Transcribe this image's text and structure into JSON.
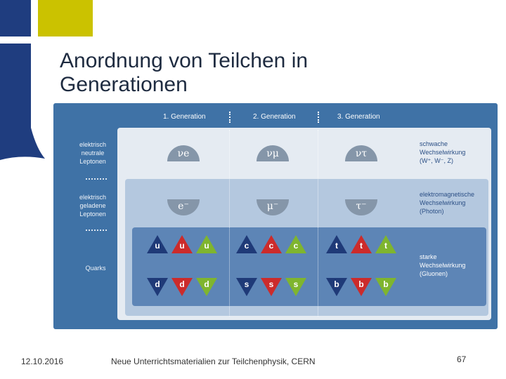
{
  "slide": {
    "title": "Anordnung von Teilchen in Generationen"
  },
  "diagram": {
    "generations": [
      "1. Generation",
      "2. Generation",
      "3. Generation"
    ],
    "row_labels": {
      "neutral_leptons": "elektrisch neutrale Leptonen",
      "charged_leptons": "elektrisch geladene Leptonen",
      "quarks": "Quarks"
    },
    "interactions": {
      "weak": "schwache Wechselwirkung (W⁺, W⁻, Z)",
      "electromagnetic": "elektromagnetische Wechselwirkung (Photon)",
      "strong": "starke Wechselwirkung (Gluonen)"
    },
    "neutrinos": [
      "νe",
      "νμ",
      "ντ"
    ],
    "charged_leptons": [
      "e⁻",
      "μ⁻",
      "τ⁻"
    ],
    "up_quarks": [
      "u",
      "u",
      "u",
      "c",
      "c",
      "c",
      "t",
      "t",
      "t"
    ],
    "down_quarks": [
      "d",
      "d",
      "d",
      "s",
      "s",
      "s",
      "b",
      "b",
      "b"
    ],
    "quark_colors": [
      "#1f3a78",
      "#cc2b2b",
      "#7fb52e"
    ]
  },
  "footer": {
    "date": "12.10.2016",
    "source": "Neue Unterrichtsmaterialien zur Teilchenphysik, CERN",
    "page_number": "67"
  }
}
